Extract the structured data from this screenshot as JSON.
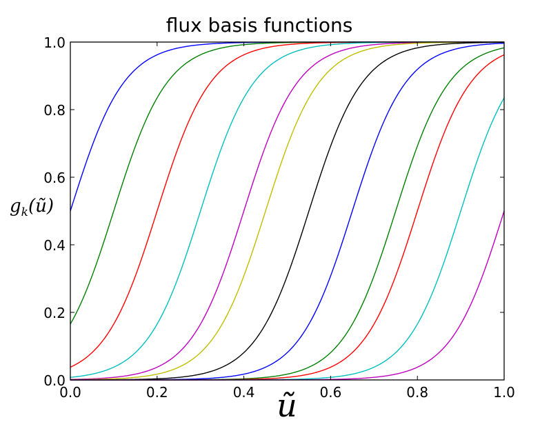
{
  "chart_data": {
    "type": "line",
    "title": "flux basis functions",
    "xlabel": "ũ",
    "ylabel": "g_k(ũ)",
    "ylabel_display": "gk(ũ)",
    "xlim": [
      0.0,
      1.0
    ],
    "ylim": [
      0.0,
      1.0
    ],
    "grid": false,
    "legend": "none",
    "x_ticks": [
      "0.0",
      "0.2",
      "0.4",
      "0.6",
      "0.8",
      "1.0"
    ],
    "y_ticks": [
      "0.0",
      "0.2",
      "0.4",
      "0.6",
      "0.8",
      "1.0"
    ],
    "curve_form": "logistic",
    "steepness": 16.2,
    "series": [
      {
        "color": "#0000ff",
        "midpoint": 0.0
      },
      {
        "color": "#008000",
        "midpoint": 0.1
      },
      {
        "color": "#ff0000",
        "midpoint": 0.2
      },
      {
        "color": "#00bfbf",
        "midpoint": 0.3
      },
      {
        "color": "#bf00bf",
        "midpoint": 0.4
      },
      {
        "color": "#bfbf00",
        "midpoint": 0.45
      },
      {
        "color": "#000000",
        "midpoint": 0.55
      },
      {
        "color": "#0000ff",
        "midpoint": 0.65
      },
      {
        "color": "#008000",
        "midpoint": 0.75
      },
      {
        "color": "#ff0000",
        "midpoint": 0.8
      },
      {
        "color": "#00bfbf",
        "midpoint": 0.9
      },
      {
        "color": "#bf00bf",
        "midpoint": 1.0
      }
    ]
  }
}
